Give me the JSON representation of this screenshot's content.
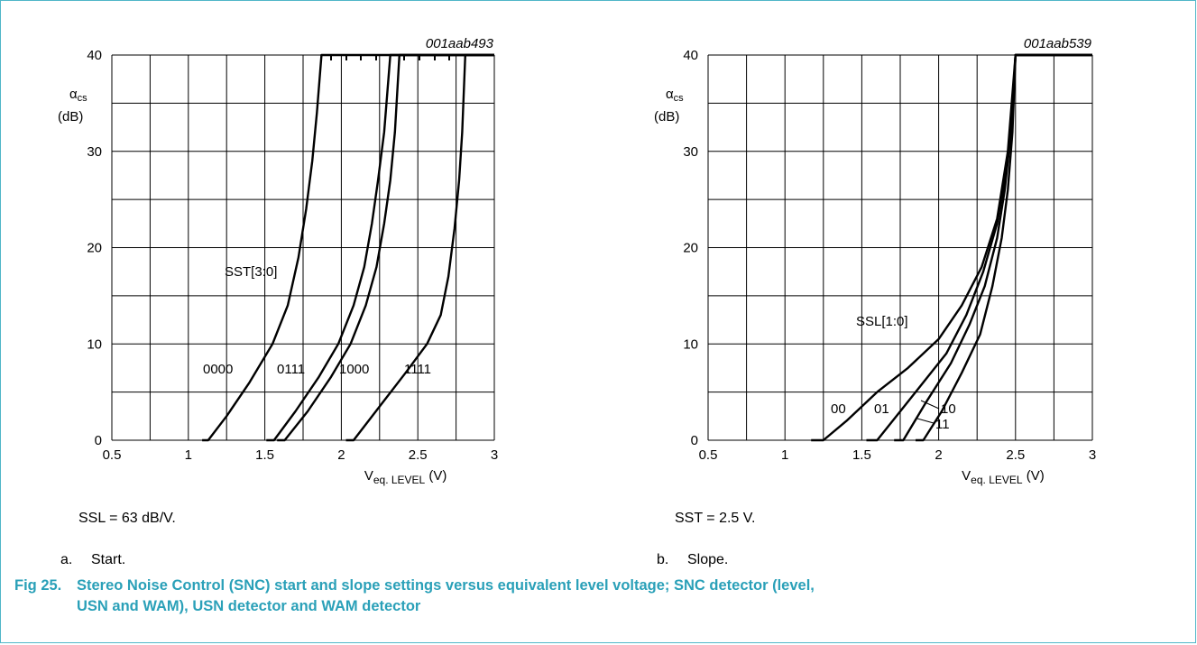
{
  "figure": {
    "number": "Fig 25.",
    "caption_line1": "Stereo Noise Control (SNC) start and slope settings versus equivalent level voltage; SNC detector (level,",
    "caption_line2": "USN and WAM), USN detector and WAM detector"
  },
  "panels": [
    {
      "code": "001aab493",
      "condition": "SSL = 63 dB/V.",
      "sub_letter": "a.",
      "sub_caption": "Start.",
      "family_label": "SST[3:0]"
    },
    {
      "code": "001aab539",
      "condition": "SST = 2.5 V.",
      "sub_letter": "b.",
      "sub_caption": "Slope.",
      "family_label": "SSL[1:0]"
    }
  ],
  "chart_data": [
    {
      "type": "line",
      "ylabel_symbol": "α",
      "ylabel_sub": "cs",
      "ylabel_unit": "(dB)",
      "xlabel_symbol": "V",
      "xlabel_sub": "eq. LEVEL",
      "xlabel_unit": "(V)",
      "xlim": [
        0.5,
        3
      ],
      "ylim": [
        0,
        40
      ],
      "xticks": [
        "0.5",
        "1",
        "1.5",
        "2",
        "2.5",
        "3"
      ],
      "yticks": [
        "0",
        "10",
        "20",
        "30",
        "40"
      ],
      "grid": true,
      "series": [
        {
          "name": "0000",
          "x": [
            1.09,
            1.13,
            1.25,
            1.4,
            1.55,
            1.65,
            1.72,
            1.77,
            1.81,
            1.84,
            1.87,
            3.0
          ],
          "y": [
            0,
            0,
            2.5,
            6,
            10,
            14,
            19,
            24,
            29,
            34,
            40,
            40
          ]
        },
        {
          "name": "0111",
          "x": [
            1.51,
            1.56,
            1.7,
            1.85,
            1.98,
            2.08,
            2.15,
            2.2,
            2.24,
            2.28,
            2.32,
            3.0
          ],
          "y": [
            0,
            0,
            3,
            6.5,
            10,
            14,
            18,
            22.5,
            27,
            32,
            40,
            40
          ]
        },
        {
          "name": "1000",
          "x": [
            1.58,
            1.63,
            1.78,
            1.93,
            2.06,
            2.16,
            2.23,
            2.28,
            2.32,
            2.35,
            2.38,
            3.0
          ],
          "y": [
            0,
            0,
            3,
            6.5,
            10,
            14,
            18,
            22.5,
            27,
            32,
            40,
            40
          ]
        },
        {
          "name": "1111",
          "x": [
            2.03,
            2.08,
            2.25,
            2.42,
            2.56,
            2.65,
            2.7,
            2.74,
            2.77,
            2.79,
            2.81,
            3.0
          ],
          "y": [
            0,
            0,
            3.5,
            7,
            10,
            13,
            17,
            22,
            27,
            32,
            40,
            40
          ]
        }
      ]
    },
    {
      "type": "line",
      "ylabel_symbol": "α",
      "ylabel_sub": "cs",
      "ylabel_unit": "(dB)",
      "xlabel_symbol": "V",
      "xlabel_sub": "eq. LEVEL",
      "xlabel_unit": "(V)",
      "xlim": [
        0.5,
        3
      ],
      "ylim": [
        0,
        40
      ],
      "xticks": [
        "0.5",
        "1",
        "1.5",
        "2",
        "2.5",
        "3"
      ],
      "yticks": [
        "0",
        "10",
        "20",
        "30",
        "40"
      ],
      "grid": true,
      "series": [
        {
          "name": "00",
          "x": [
            1.17,
            1.25,
            1.4,
            1.6,
            1.8,
            2.0,
            2.15,
            2.28,
            2.38,
            2.45,
            2.5,
            3.0
          ],
          "y": [
            0,
            0,
            2,
            5,
            7.5,
            10.5,
            14,
            18,
            23,
            30,
            40,
            40
          ]
        },
        {
          "name": "01",
          "x": [
            1.53,
            1.6,
            1.75,
            1.9,
            2.05,
            2.18,
            2.29,
            2.38,
            2.44,
            2.48,
            2.5,
            3.0
          ],
          "y": [
            0,
            0,
            3,
            6,
            9,
            13,
            17.5,
            22.5,
            28,
            34,
            40,
            40
          ]
        },
        {
          "name": "10",
          "x": [
            1.71,
            1.77,
            1.92,
            2.08,
            2.2,
            2.3,
            2.38,
            2.43,
            2.47,
            2.5,
            3.0
          ],
          "y": [
            0,
            0,
            4,
            8,
            12,
            16,
            21,
            26,
            32,
            40,
            40
          ]
        },
        {
          "name": "11",
          "x": [
            1.85,
            1.9,
            2.02,
            2.15,
            2.27,
            2.35,
            2.41,
            2.45,
            2.48,
            2.5,
            3.0
          ],
          "y": [
            0,
            0,
            3,
            7,
            11,
            16,
            21,
            26,
            32,
            40,
            40
          ]
        }
      ]
    }
  ]
}
